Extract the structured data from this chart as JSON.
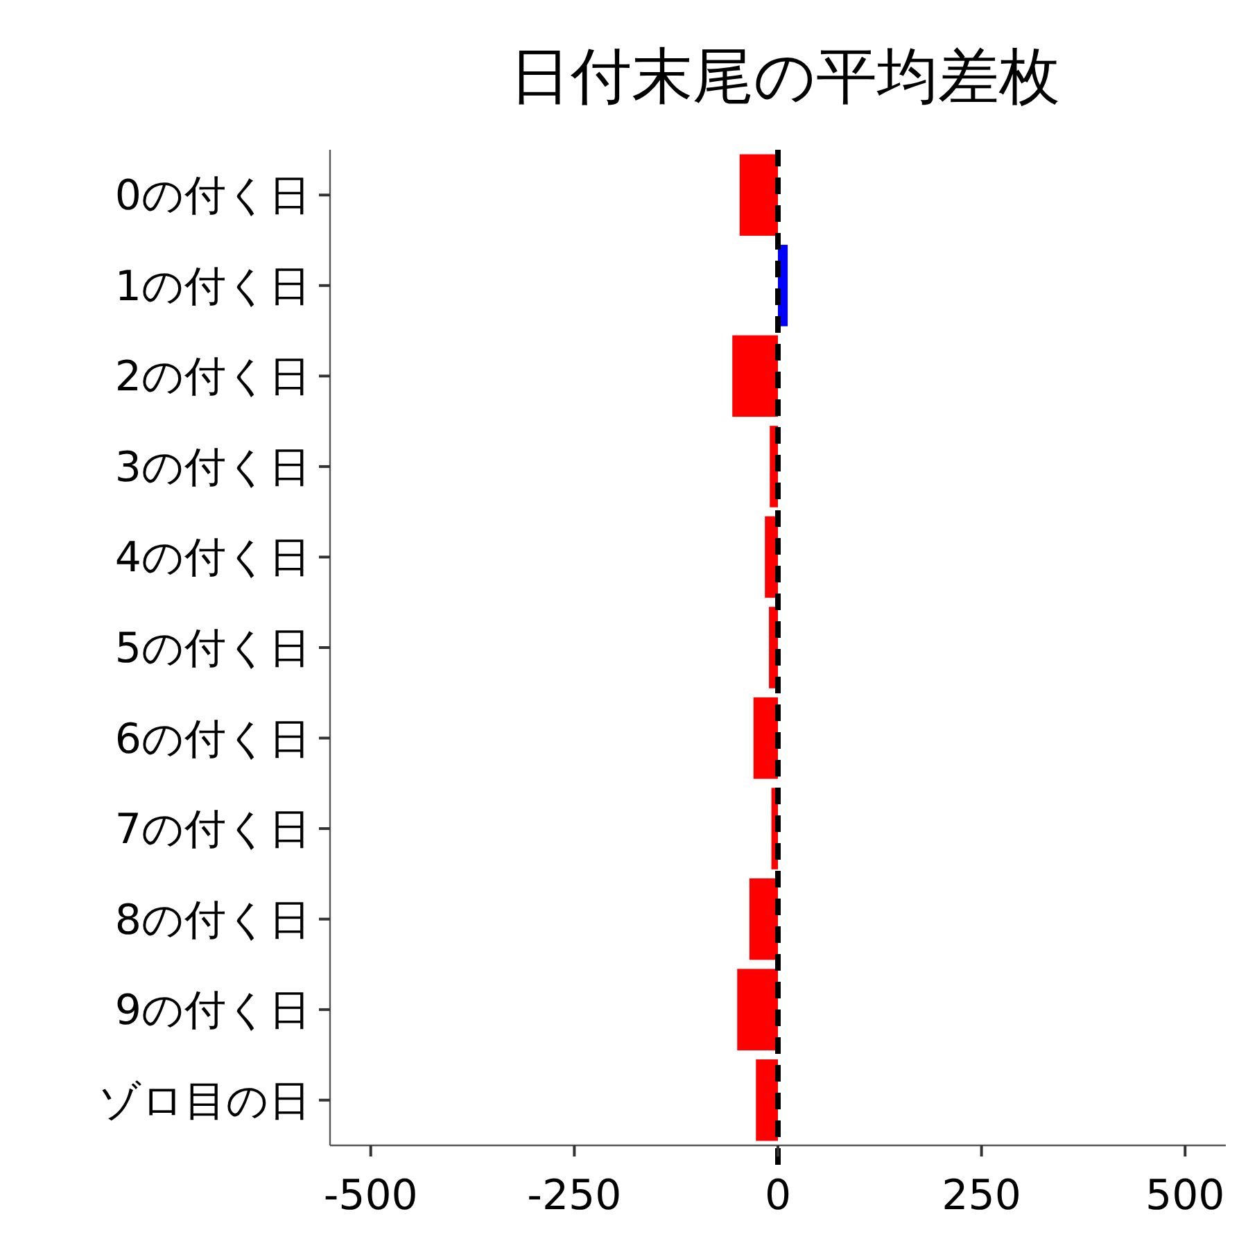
{
  "chart_data": {
    "type": "bar",
    "orientation": "horizontal",
    "title": "日付末尾の平均差枚",
    "categories": [
      "0の付く日",
      "1の付く日",
      "2の付く日",
      "3の付く日",
      "4の付く日",
      "5の付く日",
      "6の付く日",
      "7の付く日",
      "8の付く日",
      "9の付く日",
      "ゾロ目の日"
    ],
    "values": [
      -47,
      12,
      -56,
      -10,
      -16,
      -11,
      -30,
      -8,
      -35,
      -50,
      -27
    ],
    "colors": [
      "#ff0000",
      "#0000ff",
      "#ff0000",
      "#ff0000",
      "#ff0000",
      "#ff0000",
      "#ff0000",
      "#ff0000",
      "#ff0000",
      "#ff0000",
      "#ff0000"
    ],
    "xlim": [
      -550,
      550
    ],
    "xticks": [
      -500,
      -250,
      0,
      250,
      500
    ],
    "ref_lines": [
      {
        "axis": "x",
        "value": 0,
        "color": "#000000",
        "line_style": "dashed"
      }
    ],
    "grid": false
  }
}
